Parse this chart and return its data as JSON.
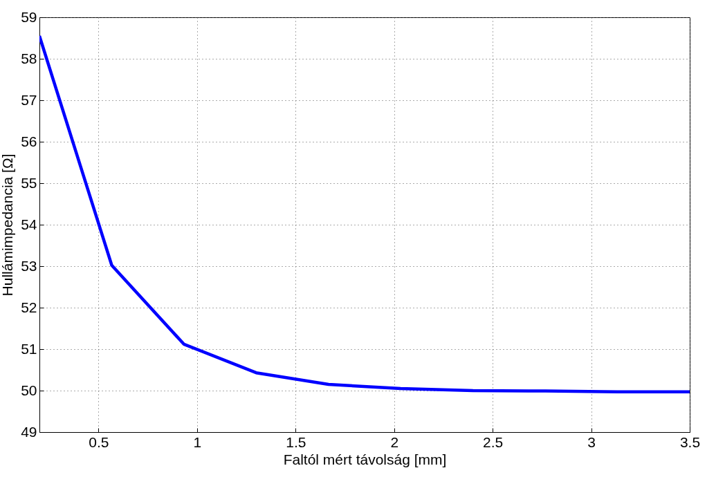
{
  "chart_data": {
    "type": "line",
    "xlabel": "Faltól mért távolság [mm]",
    "ylabel": "Hullámimpedancia [Ω]",
    "x": [
      0.2,
      0.567,
      0.933,
      1.3,
      1.667,
      2.033,
      2.4,
      2.767,
      3.133,
      3.5
    ],
    "series": [
      {
        "color": "#0000ff",
        "values": [
          58.55,
          53.02,
          51.12,
          50.43,
          50.15,
          50.05,
          50.0,
          49.99,
          49.97,
          49.97
        ]
      }
    ],
    "xlim": [
      0.2,
      3.5
    ],
    "xticks": [
      0.5,
      1,
      1.5,
      2,
      2.5,
      3,
      3.5
    ],
    "ylim": [
      49,
      59
    ],
    "yticks": [
      49,
      50,
      51,
      52,
      53,
      54,
      55,
      56,
      57,
      58,
      59
    ],
    "grid": true,
    "line_style": "solid",
    "marker": "none"
  }
}
